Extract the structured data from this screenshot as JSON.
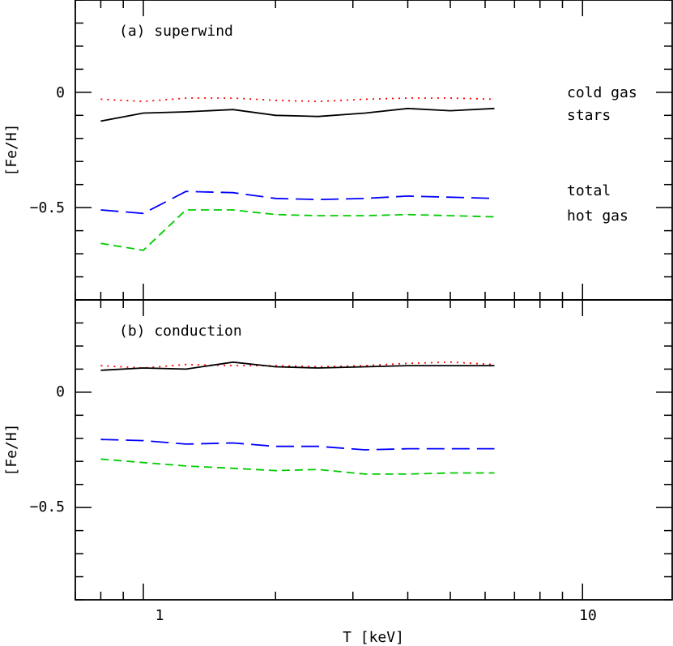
{
  "chart_data": [
    {
      "type": "line",
      "panel_label": "(a) superwind",
      "xlabel": "T [keV]",
      "ylabel": "[Fe/H]",
      "xscale": "log",
      "xlim": [
        0.7,
        16
      ],
      "ylim": [
        -0.9,
        0.4
      ],
      "xticks_labeled": [
        1,
        10
      ],
      "yticks_labeled": [
        0,
        -0.5
      ],
      "ytick_labels": [
        "0",
        "−0.5"
      ],
      "xtick_labels": [
        "1",
        "10"
      ],
      "series": [
        {
          "name": "cold gas",
          "style": "dotted",
          "color": "#ff0000",
          "x": [
            0.8,
            1.0,
            1.25,
            1.6,
            2.0,
            2.5,
            3.2,
            4.0,
            5.0,
            6.3
          ],
          "y": [
            -0.03,
            -0.04,
            -0.025,
            -0.025,
            -0.035,
            -0.04,
            -0.03,
            -0.025,
            -0.025,
            -0.03
          ]
        },
        {
          "name": "stars",
          "style": "solid",
          "color": "#000000",
          "x": [
            0.8,
            1.0,
            1.25,
            1.6,
            2.0,
            2.5,
            3.2,
            4.0,
            5.0,
            6.3
          ],
          "y": [
            -0.125,
            -0.09,
            -0.085,
            -0.075,
            -0.1,
            -0.105,
            -0.09,
            -0.07,
            -0.08,
            -0.07
          ]
        },
        {
          "name": "total",
          "style": "long-dashed",
          "color": "#0000ff",
          "x": [
            0.8,
            1.0,
            1.25,
            1.6,
            2.0,
            2.5,
            3.2,
            4.0,
            5.0,
            6.3
          ],
          "y": [
            -0.51,
            -0.525,
            -0.43,
            -0.435,
            -0.46,
            -0.465,
            -0.46,
            -0.45,
            -0.455,
            -0.46
          ]
        },
        {
          "name": "hot gas",
          "style": "dashed",
          "color": "#00cc00",
          "x": [
            0.8,
            1.0,
            1.25,
            1.6,
            2.0,
            2.5,
            3.2,
            4.0,
            5.0,
            6.3
          ],
          "y": [
            -0.655,
            -0.685,
            -0.51,
            -0.51,
            -0.53,
            -0.535,
            -0.535,
            -0.53,
            -0.535,
            -0.54
          ]
        }
      ],
      "legend": [
        {
          "label": "cold gas"
        },
        {
          "label": "stars"
        },
        {
          "label": "total"
        },
        {
          "label": "hot gas"
        }
      ]
    },
    {
      "type": "line",
      "panel_label": "(b) conduction",
      "xlabel": "T [keV]",
      "ylabel": "[Fe/H]",
      "xscale": "log",
      "xlim": [
        0.7,
        16
      ],
      "ylim": [
        -0.9,
        0.4
      ],
      "xticks_labeled": [
        1,
        10
      ],
      "yticks_labeled": [
        0,
        -0.5
      ],
      "ytick_labels": [
        "0",
        "−0.5"
      ],
      "xtick_labels": [
        "1",
        "10"
      ],
      "series": [
        {
          "name": "cold gas",
          "style": "dotted",
          "color": "#ff0000",
          "x": [
            0.8,
            1.0,
            1.25,
            1.6,
            2.0,
            2.5,
            3.2,
            4.0,
            5.0,
            6.3
          ],
          "y": [
            0.115,
            0.105,
            0.12,
            0.115,
            0.115,
            0.11,
            0.115,
            0.125,
            0.13,
            0.12
          ]
        },
        {
          "name": "stars",
          "style": "solid",
          "color": "#000000",
          "x": [
            0.8,
            1.0,
            1.25,
            1.6,
            2.0,
            2.5,
            3.2,
            4.0,
            5.0,
            6.3
          ],
          "y": [
            0.095,
            0.105,
            0.1,
            0.13,
            0.11,
            0.105,
            0.11,
            0.115,
            0.115,
            0.115
          ]
        },
        {
          "name": "total",
          "style": "long-dashed",
          "color": "#0000ff",
          "x": [
            0.8,
            1.0,
            1.25,
            1.6,
            2.0,
            2.5,
            3.2,
            4.0,
            5.0,
            6.3
          ],
          "y": [
            -0.205,
            -0.21,
            -0.225,
            -0.22,
            -0.235,
            -0.235,
            -0.25,
            -0.245,
            -0.245,
            -0.245
          ]
        },
        {
          "name": "hot gas",
          "style": "dashed",
          "color": "#00cc00",
          "x": [
            0.8,
            1.0,
            1.25,
            1.6,
            2.0,
            2.5,
            3.2,
            4.0,
            5.0,
            6.3
          ],
          "y": [
            -0.29,
            -0.305,
            -0.32,
            -0.33,
            -0.34,
            -0.335,
            -0.355,
            -0.355,
            -0.35,
            -0.35
          ]
        }
      ]
    }
  ]
}
